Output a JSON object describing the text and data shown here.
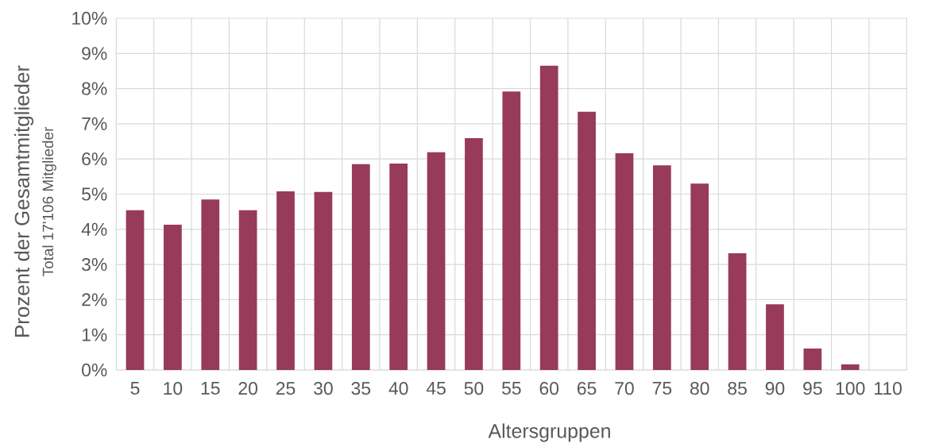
{
  "chart_data": {
    "type": "bar",
    "xlabel": "Altersgruppen",
    "ylabel": "Prozent der Gesamtmitglieder",
    "annotations": [
      "Total 17'106 Mitglieder"
    ],
    "categories": [
      "5",
      "10",
      "15",
      "20",
      "25",
      "30",
      "35",
      "40",
      "45",
      "50",
      "55",
      "60",
      "65",
      "70",
      "75",
      "80",
      "85",
      "90",
      "95",
      "100",
      "110"
    ],
    "values": [
      4.54,
      4.13,
      4.85,
      4.54,
      5.08,
      5.06,
      5.85,
      5.87,
      6.19,
      6.59,
      7.92,
      8.65,
      7.34,
      6.16,
      5.82,
      5.3,
      3.32,
      1.87,
      0.61,
      0.16,
      0
    ],
    "color": "#983a5a",
    "ylim": [
      0,
      10
    ],
    "yticks": [
      {
        "value": 0,
        "label": "0%"
      },
      {
        "value": 1,
        "label": "1%"
      },
      {
        "value": 2,
        "label": "2%"
      },
      {
        "value": 3,
        "label": "3%"
      },
      {
        "value": 4,
        "label": "4%"
      },
      {
        "value": 5,
        "label": "5%"
      },
      {
        "value": 6,
        "label": "6%"
      },
      {
        "value": 7,
        "label": "7%"
      },
      {
        "value": 8,
        "label": "8%"
      },
      {
        "value": 9,
        "label": "9%"
      },
      {
        "value": 10,
        "label": "10%"
      }
    ],
    "grid": true
  }
}
